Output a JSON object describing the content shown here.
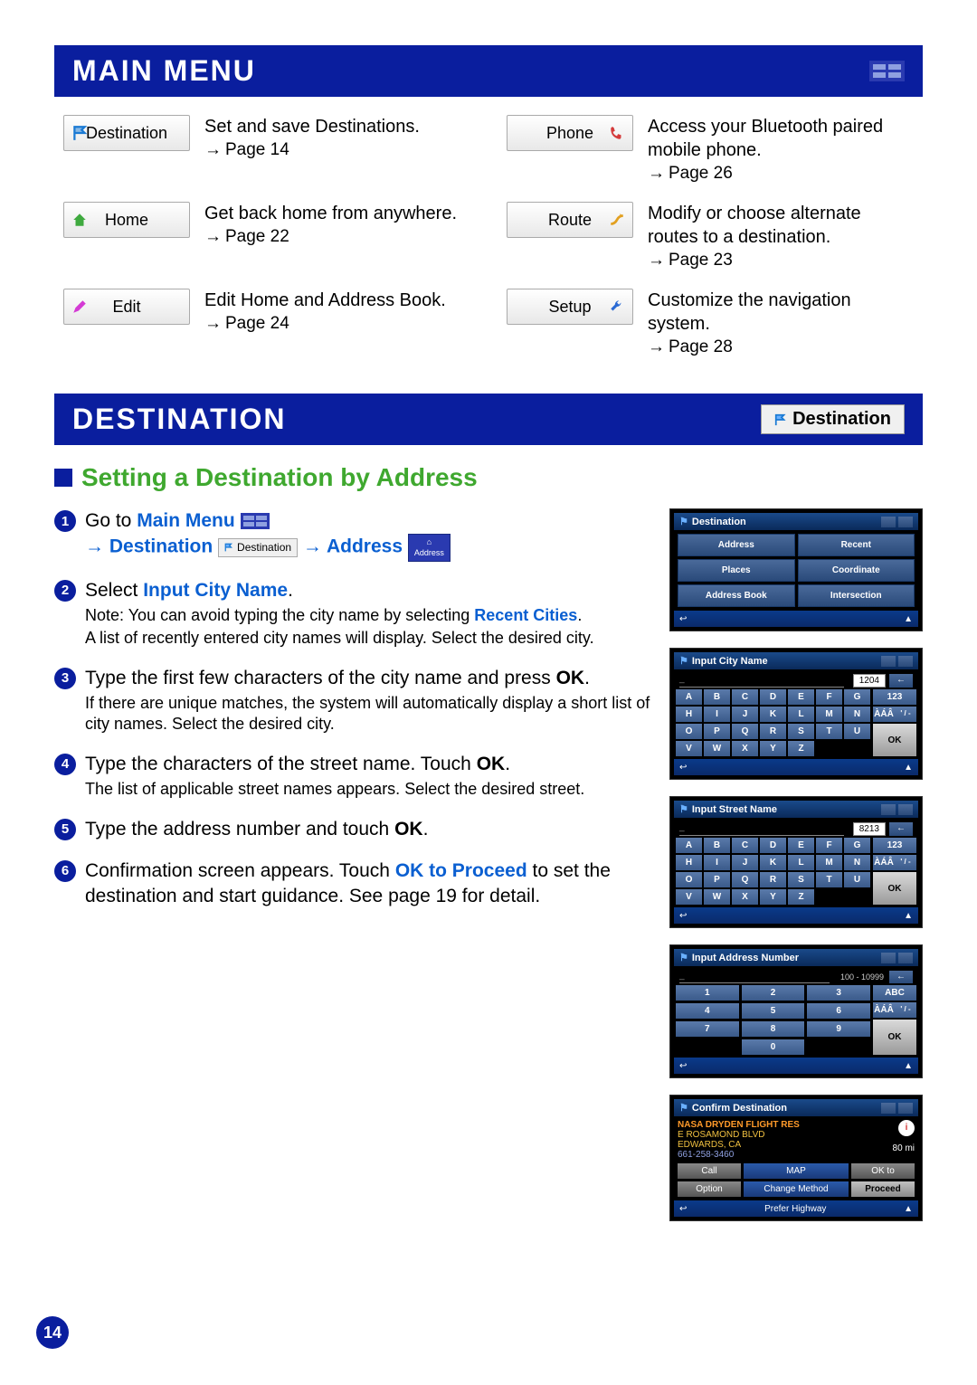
{
  "headers": {
    "main_menu": "MAIN MENU",
    "destination": "DESTINATION",
    "dest_btn_label": "Destination"
  },
  "menu": [
    {
      "label": "Destination",
      "desc": "Set and save Destinations.",
      "page": "Page 14",
      "icon": "flag",
      "icon_color": "#1a7ad4",
      "icon_pos": "left"
    },
    {
      "label": "Phone",
      "desc": "Access your Bluetooth paired mobile phone.",
      "page": "Page 26",
      "icon": "phone",
      "icon_color": "#d43a3a",
      "icon_pos": "right"
    },
    {
      "label": "Home",
      "desc": "Get back home from anywhere.",
      "page": "Page 22",
      "icon": "home",
      "icon_color": "#3faa3f",
      "icon_pos": "left"
    },
    {
      "label": "Route",
      "desc": "Modify or choose alternate routes to a destination.",
      "page": "Page 23",
      "icon": "route",
      "icon_color": "#e2a020",
      "icon_pos": "right"
    },
    {
      "label": "Edit",
      "desc": "Edit Home and Address Book.",
      "page": "Page 24",
      "icon": "pencil",
      "icon_color": "#d43ad4",
      "icon_pos": "left"
    },
    {
      "label": "Setup",
      "desc": "Customize the navigation system.",
      "page": "Page 28",
      "icon": "wrench",
      "icon_color": "#2a6ad4",
      "icon_pos": "right"
    }
  ],
  "subtitle": "Setting a Destination by Address",
  "steps": {
    "s1_a": "Go to ",
    "s1_b": "Main Menu",
    "s1_c": "Destination",
    "s1_d": "Address",
    "s2_a": "Select ",
    "s2_b": "Input City Name",
    "s2_c": ".",
    "s2_note1": "Note: ",
    "s2_note2": "You can avoid typing the city name by selecting ",
    "s2_note3": "Recent Cities",
    "s2_note4": ".",
    "s2_sub": "A list of recently entered city names will display. Select the desired city.",
    "s3_a": "Type the first few characters of the city name and press ",
    "s3_b": "OK",
    "s3_c": ".",
    "s3_sub": "If there are unique matches, the system will automatically display a short list of city names. Select the desired city.",
    "s4_a": "Type the characters of the street name. Touch ",
    "s4_b": "OK",
    "s4_c": ".",
    "s4_sub": "The list of applicable street names appears. Select the desired street.",
    "s5_a": "Type the address number and touch ",
    "s5_b": "OK",
    "s5_c": ".",
    "s6_a": "Confirmation screen appears. Touch ",
    "s6_b": "OK to Proceed",
    "s6_c": " to set the destination and start guidance. See page 19 for detail."
  },
  "screens": {
    "dest": {
      "title": "Destination",
      "cells": [
        "Address",
        "Recent",
        "Places",
        "Coordinate",
        "Address Book",
        "Intersection"
      ]
    },
    "city": {
      "title": "Input City Name",
      "count": "1204",
      "special": "123",
      "ok": "OK"
    },
    "street": {
      "title": "Input Street Name",
      "count": "8213",
      "special": "123",
      "ok": "OK"
    },
    "number": {
      "title": "Input Address Number",
      "range": "100 - 10999",
      "abc": "ABC",
      "ok": "OK"
    },
    "confirm": {
      "title": "Confirm Destination",
      "name": "NASA DRYDEN FLIGHT RES",
      "addr1": "E ROSAMOND BLVD",
      "addr2": "EDWARDS, CA",
      "phone": "661-258-3460",
      "dist": "80 mi",
      "call": "Call",
      "map": "MAP",
      "okto": "OK  to",
      "option": "Option",
      "change": "Change Method",
      "proceed": "Proceed",
      "prefer": "Prefer Highway"
    },
    "letters_r1": [
      "A",
      "B",
      "C",
      "D",
      "E",
      "F",
      "G"
    ],
    "letters_r2": [
      "H",
      "I",
      "J",
      "K",
      "L",
      "M",
      "N"
    ],
    "letters_r3": [
      "O",
      "P",
      "Q",
      "R",
      "S",
      "T",
      "U"
    ],
    "letters_r4": [
      "V",
      "W",
      "X",
      "Y",
      "Z"
    ],
    "aaa": "ÀÁÂ",
    "sym": "' / -"
  },
  "page_number": "14",
  "colors": {
    "header_bg": "#0a1e9e",
    "accent_green": "#3fa82f",
    "link_blue": "#0a5fd1"
  }
}
